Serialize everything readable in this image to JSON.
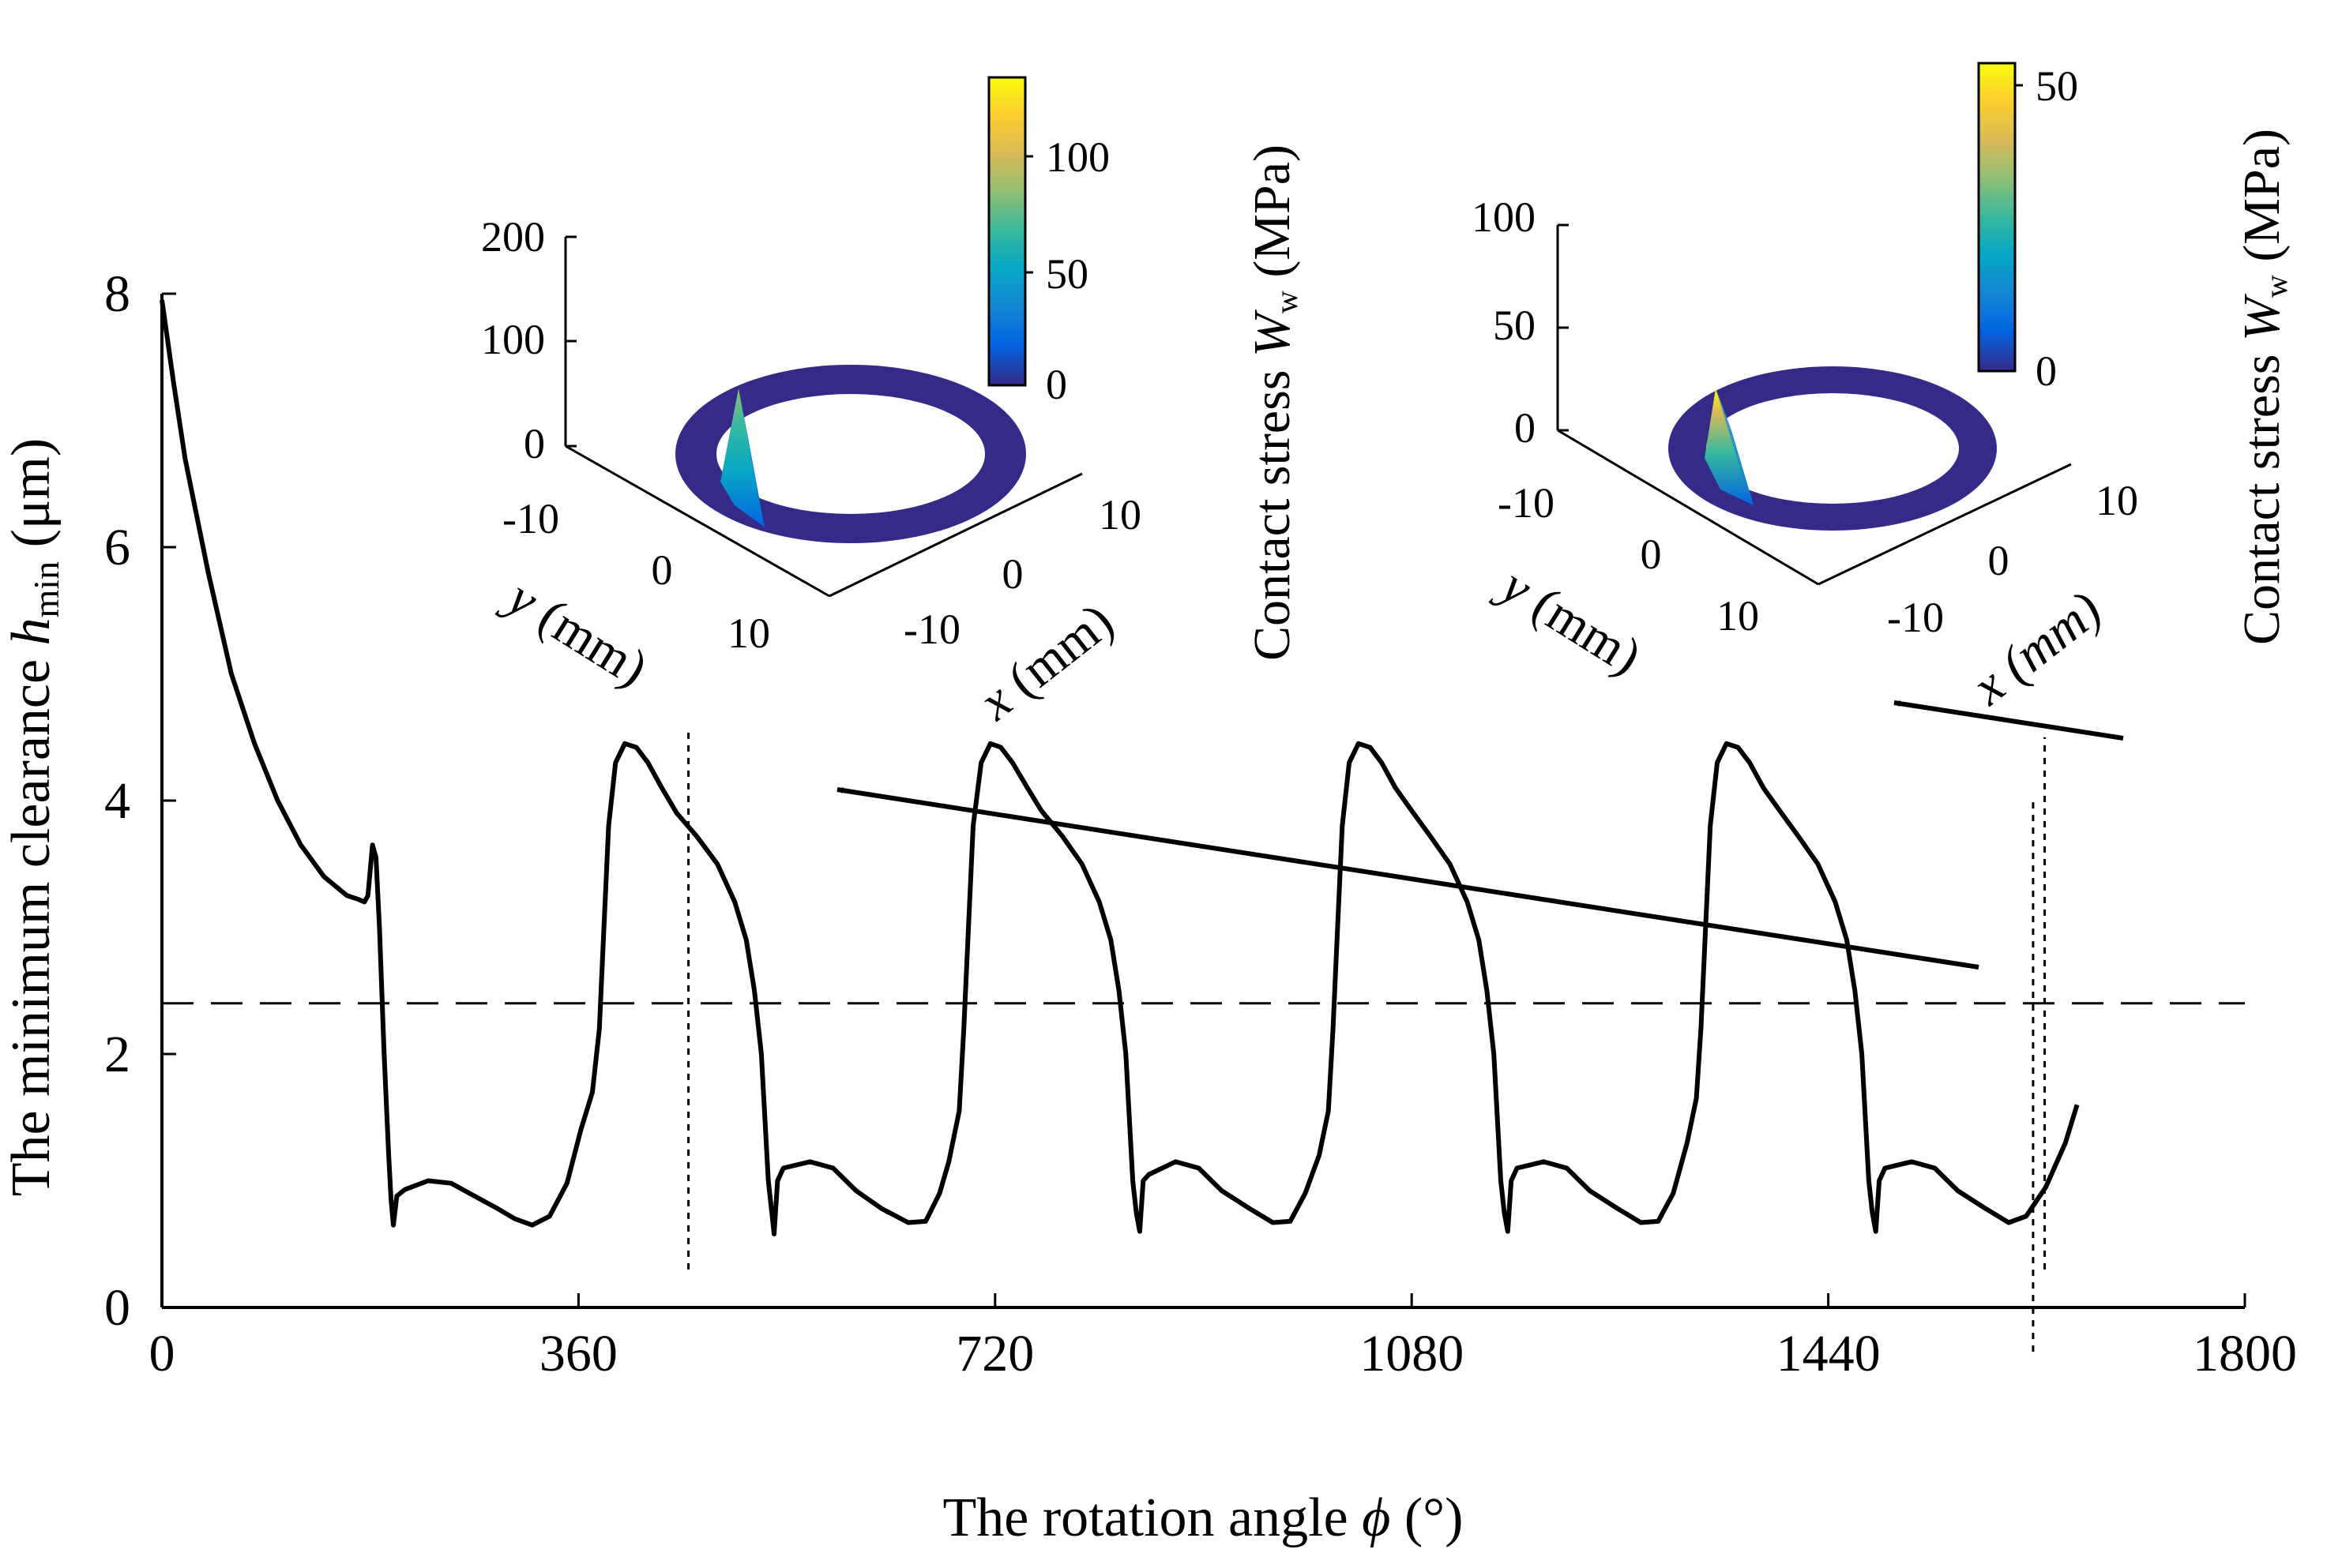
{
  "chart_data": {
    "type": "line",
    "xlabel_main": "The rotation angle ",
    "xlabel_symbol": "ϕ",
    "xlabel_unit": " (°)",
    "ylabel_main": "The minimum clearance ",
    "ylabel_symbol": "h",
    "ylabel_sub": "min",
    "ylabel_unit": " (μm)",
    "xlim": [
      0,
      1800
    ],
    "ylim": [
      0,
      8
    ],
    "x_ticks": [
      "0",
      "360",
      "720",
      "1080",
      "1440",
      "1800"
    ],
    "y_ticks": [
      "0",
      "2",
      "4",
      "6",
      "8"
    ],
    "series": [
      {
        "name": "h_min",
        "color": "#000000",
        "points": [
          [
            0,
            7.95
          ],
          [
            10,
            7.3
          ],
          [
            20,
            6.7
          ],
          [
            40,
            5.8
          ],
          [
            60,
            5.0
          ],
          [
            80,
            4.45
          ],
          [
            100,
            4.0
          ],
          [
            120,
            3.65
          ],
          [
            140,
            3.4
          ],
          [
            160,
            3.25
          ],
          [
            170,
            3.22
          ],
          [
            175,
            3.2
          ],
          [
            178,
            3.25
          ],
          [
            182,
            3.65
          ],
          [
            185,
            3.55
          ],
          [
            188,
            3.0
          ],
          [
            192,
            2.0
          ],
          [
            196,
            1.2
          ],
          [
            198,
            0.85
          ],
          [
            200,
            0.65
          ],
          [
            203,
            0.88
          ],
          [
            210,
            0.93
          ],
          [
            230,
            1.0
          ],
          [
            250,
            0.98
          ],
          [
            270,
            0.88
          ],
          [
            290,
            0.78
          ],
          [
            305,
            0.7
          ],
          [
            320,
            0.65
          ],
          [
            335,
            0.72
          ],
          [
            350,
            0.98
          ],
          [
            362,
            1.4
          ],
          [
            372,
            1.7
          ],
          [
            378,
            2.2
          ],
          [
            382,
            3.0
          ],
          [
            386,
            3.8
          ],
          [
            392,
            4.3
          ],
          [
            400,
            4.45
          ],
          [
            410,
            4.42
          ],
          [
            420,
            4.3
          ],
          [
            432,
            4.1
          ],
          [
            445,
            3.9
          ],
          [
            462,
            3.72
          ],
          [
            480,
            3.5
          ],
          [
            495,
            3.2
          ],
          [
            505,
            2.9
          ],
          [
            512,
            2.5
          ],
          [
            518,
            2.0
          ],
          [
            521,
            1.5
          ],
          [
            524,
            1.0
          ],
          [
            527,
            0.75
          ],
          [
            529,
            0.58
          ],
          [
            532,
            1.0
          ],
          [
            537,
            1.1
          ],
          [
            560,
            1.15
          ],
          [
            580,
            1.1
          ],
          [
            600,
            0.92
          ],
          [
            622,
            0.78
          ],
          [
            645,
            0.67
          ],
          [
            660,
            0.68
          ],
          [
            672,
            0.9
          ],
          [
            680,
            1.15
          ],
          [
            689,
            1.55
          ],
          [
            693,
            2.2
          ],
          [
            697,
            3.0
          ],
          [
            701,
            3.8
          ],
          [
            708,
            4.3
          ],
          [
            716,
            4.45
          ],
          [
            725,
            4.42
          ],
          [
            735,
            4.3
          ],
          [
            748,
            4.1
          ],
          [
            760,
            3.92
          ],
          [
            778,
            3.72
          ],
          [
            795,
            3.5
          ],
          [
            810,
            3.2
          ],
          [
            820,
            2.9
          ],
          [
            827,
            2.5
          ],
          [
            833,
            2.0
          ],
          [
            836,
            1.5
          ],
          [
            839,
            1.0
          ],
          [
            842,
            0.75
          ],
          [
            845,
            0.6
          ],
          [
            848,
            1.0
          ],
          [
            853,
            1.05
          ],
          [
            876,
            1.15
          ],
          [
            896,
            1.1
          ],
          [
            916,
            0.92
          ],
          [
            940,
            0.78
          ],
          [
            960,
            0.67
          ],
          [
            975,
            0.68
          ],
          [
            988,
            0.9
          ],
          [
            1000,
            1.2
          ],
          [
            1008,
            1.55
          ],
          [
            1012,
            2.2
          ],
          [
            1016,
            3.0
          ],
          [
            1020,
            3.8
          ],
          [
            1026,
            4.3
          ],
          [
            1034,
            4.45
          ],
          [
            1044,
            4.42
          ],
          [
            1054,
            4.3
          ],
          [
            1066,
            4.1
          ],
          [
            1080,
            3.92
          ],
          [
            1096,
            3.72
          ],
          [
            1113,
            3.5
          ],
          [
            1128,
            3.2
          ],
          [
            1138,
            2.9
          ],
          [
            1145,
            2.5
          ],
          [
            1151,
            2.0
          ],
          [
            1154,
            1.5
          ],
          [
            1157,
            1.0
          ],
          [
            1160,
            0.75
          ],
          [
            1163,
            0.6
          ],
          [
            1166,
            1.0
          ],
          [
            1171,
            1.1
          ],
          [
            1194,
            1.15
          ],
          [
            1214,
            1.1
          ],
          [
            1234,
            0.92
          ],
          [
            1258,
            0.78
          ],
          [
            1278,
            0.67
          ],
          [
            1293,
            0.68
          ],
          [
            1306,
            0.9
          ],
          [
            1318,
            1.3
          ],
          [
            1326,
            1.65
          ],
          [
            1330,
            2.2
          ],
          [
            1334,
            3.0
          ],
          [
            1338,
            3.8
          ],
          [
            1344,
            4.3
          ],
          [
            1352,
            4.45
          ],
          [
            1362,
            4.42
          ],
          [
            1372,
            4.3
          ],
          [
            1384,
            4.1
          ],
          [
            1398,
            3.92
          ],
          [
            1414,
            3.72
          ],
          [
            1431,
            3.5
          ],
          [
            1446,
            3.2
          ],
          [
            1456,
            2.9
          ],
          [
            1463,
            2.5
          ],
          [
            1469,
            2.0
          ],
          [
            1472,
            1.5
          ],
          [
            1475,
            1.0
          ],
          [
            1478,
            0.75
          ],
          [
            1481,
            0.6
          ],
          [
            1484,
            1.0
          ],
          [
            1489,
            1.1
          ],
          [
            1512,
            1.15
          ],
          [
            1532,
            1.1
          ],
          [
            1552,
            0.92
          ],
          [
            1576,
            0.78
          ],
          [
            1596,
            0.67
          ],
          [
            1611,
            0.72
          ],
          [
            1628,
            0.95
          ],
          [
            1645,
            1.3
          ],
          [
            1655,
            1.6
          ]
        ]
      }
    ],
    "reference_line": {
      "y": 2.4,
      "style": "dashed"
    },
    "markers": [
      {
        "x": 455,
        "y_from": 0.3,
        "y_to": 4.55
      },
      {
        "x": 1627,
        "y_from": 0.3,
        "y_to": 4.5
      },
      {
        "x": 1617,
        "y_from": -0.35,
        "y_to": 4.0
      }
    ],
    "insets": [
      {
        "name": "left",
        "z_ticks": [
          "200",
          "100",
          "0"
        ],
        "y_ticks": [
          "-10",
          "0",
          "10"
        ],
        "x_ticks": [
          "10",
          "0",
          "-10"
        ],
        "y_label_symbol": "y",
        "y_label_unit": " (mm)",
        "x_label_symbol": "x",
        "x_label_unit": " (mm)",
        "colorbar_ticks": [
          "100",
          "50",
          "0"
        ],
        "colorbar_title": "Contact stress ",
        "colorbar_symbol": "W",
        "colorbar_sub": "w",
        "colorbar_unit": " (MPa)",
        "peak_level": 0.85
      },
      {
        "name": "right",
        "z_ticks": [
          "100",
          "50",
          "0"
        ],
        "y_ticks": [
          "-10",
          "0",
          "10"
        ],
        "x_ticks": [
          "10",
          "0",
          "-10"
        ],
        "y_label_symbol": "y",
        "y_label_unit": " (mm)",
        "x_label_symbol": "x",
        "x_label_unit": " (mm)",
        "colorbar_ticks": [
          "50",
          "0"
        ],
        "colorbar_title": "Contact stress ",
        "colorbar_symbol": "W",
        "colorbar_sub": "w",
        "colorbar_unit": " (MPa)",
        "peak_level": 0.75
      }
    ],
    "colors": {
      "line": "#000000",
      "ring": "#352a87",
      "parula": [
        "#352a87",
        "#0363e1",
        "#1485d4",
        "#06a7c6",
        "#38b99e",
        "#92bf73",
        "#d9ba56",
        "#fcce2e",
        "#f9fb0e"
      ]
    }
  }
}
